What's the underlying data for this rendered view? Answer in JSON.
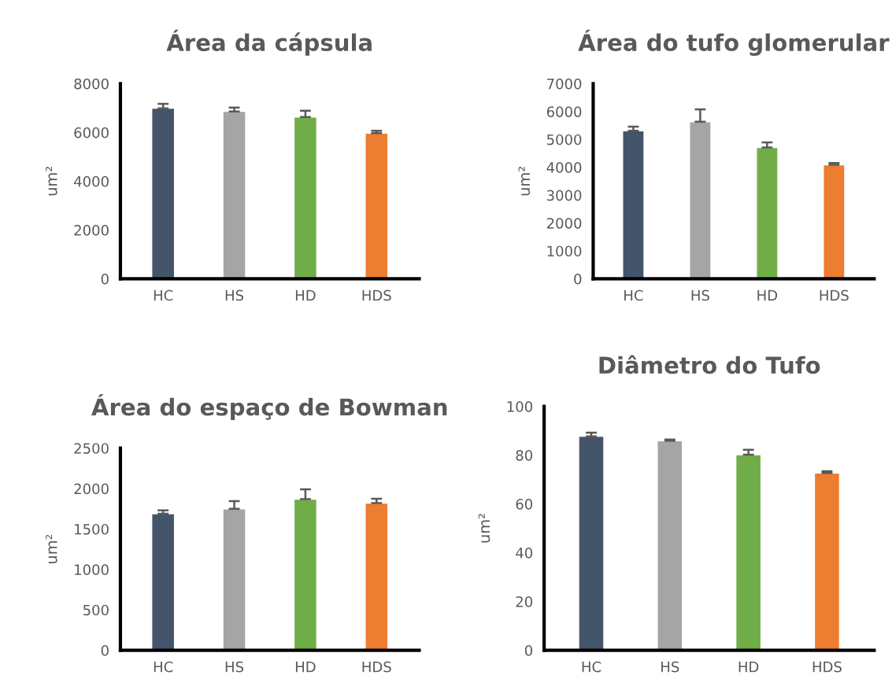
{
  "chart_data": [
    {
      "type": "bar",
      "title": "Área da cápsula",
      "ylabel": "um²",
      "categories": [
        "HC",
        "HS",
        "HD",
        "HDS"
      ],
      "values": [
        6990,
        6860,
        6630,
        5970
      ],
      "errors": [
        180,
        160,
        260,
        100
      ],
      "colors": [
        "#44546a",
        "#a5a5a5",
        "#70ad47",
        "#ed7d31"
      ],
      "ylim": [
        0,
        8000
      ],
      "yticks": [
        0,
        2000,
        4000,
        6000,
        8000
      ],
      "grid": false,
      "legend": false
    },
    {
      "type": "bar",
      "title": "Área do tufo glomerular",
      "ylabel": "um²",
      "categories": [
        "HC",
        "HS",
        "HD",
        "HDS"
      ],
      "values": [
        5310,
        5630,
        4710,
        4090
      ],
      "errors": [
        150,
        450,
        180,
        60
      ],
      "colors": [
        "#44546a",
        "#a5a5a5",
        "#70ad47",
        "#ed7d31"
      ],
      "ylim": [
        0,
        7000
      ],
      "yticks": [
        0,
        1000,
        2000,
        3000,
        4000,
        5000,
        6000,
        7000
      ],
      "grid": false,
      "legend": false
    },
    {
      "type": "bar",
      "title": "Área do espaço de Bowman",
      "ylabel": "um²",
      "categories": [
        "HC",
        "HS",
        "HD",
        "HDS"
      ],
      "values": [
        1690,
        1750,
        1870,
        1820
      ],
      "errors": [
        40,
        95,
        120,
        55
      ],
      "colors": [
        "#44546a",
        "#a5a5a5",
        "#70ad47",
        "#ed7d31"
      ],
      "ylim": [
        0,
        2500
      ],
      "yticks": [
        0,
        500,
        1000,
        1500,
        2000,
        2500
      ],
      "grid": false,
      "legend": false
    },
    {
      "type": "bar",
      "title": "Diâmetro do Tufo",
      "ylabel": "um²",
      "categories": [
        "HC",
        "HS",
        "HD",
        "HDS"
      ],
      "values": [
        87.7,
        85.9,
        80.2,
        72.7
      ],
      "errors": [
        1.5,
        0.5,
        2,
        0.7
      ],
      "colors": [
        "#44546a",
        "#a5a5a5",
        "#70ad47",
        "#ed7d31"
      ],
      "ylim": [
        0,
        100
      ],
      "yticks": [
        0,
        20,
        40,
        60,
        80,
        100
      ],
      "grid": false,
      "legend": false
    }
  ]
}
